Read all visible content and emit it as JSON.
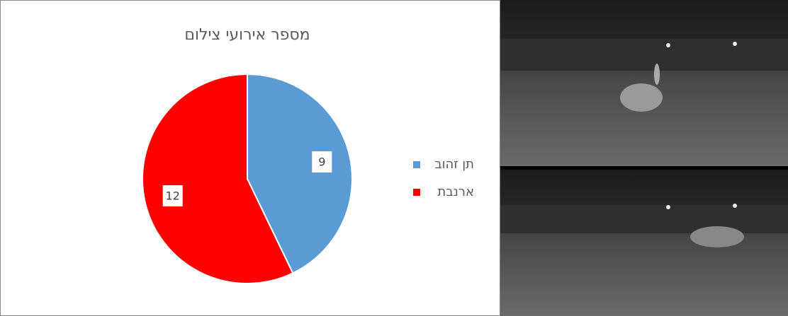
{
  "chart_data": {
    "type": "pie",
    "title": "מספר אירועי צילום",
    "categories": [
      "תן זהוב",
      "ארנבת"
    ],
    "values": [
      9,
      12
    ],
    "colors": [
      "#5b9bd5",
      "#ff0000"
    ],
    "legend": "right"
  }
}
